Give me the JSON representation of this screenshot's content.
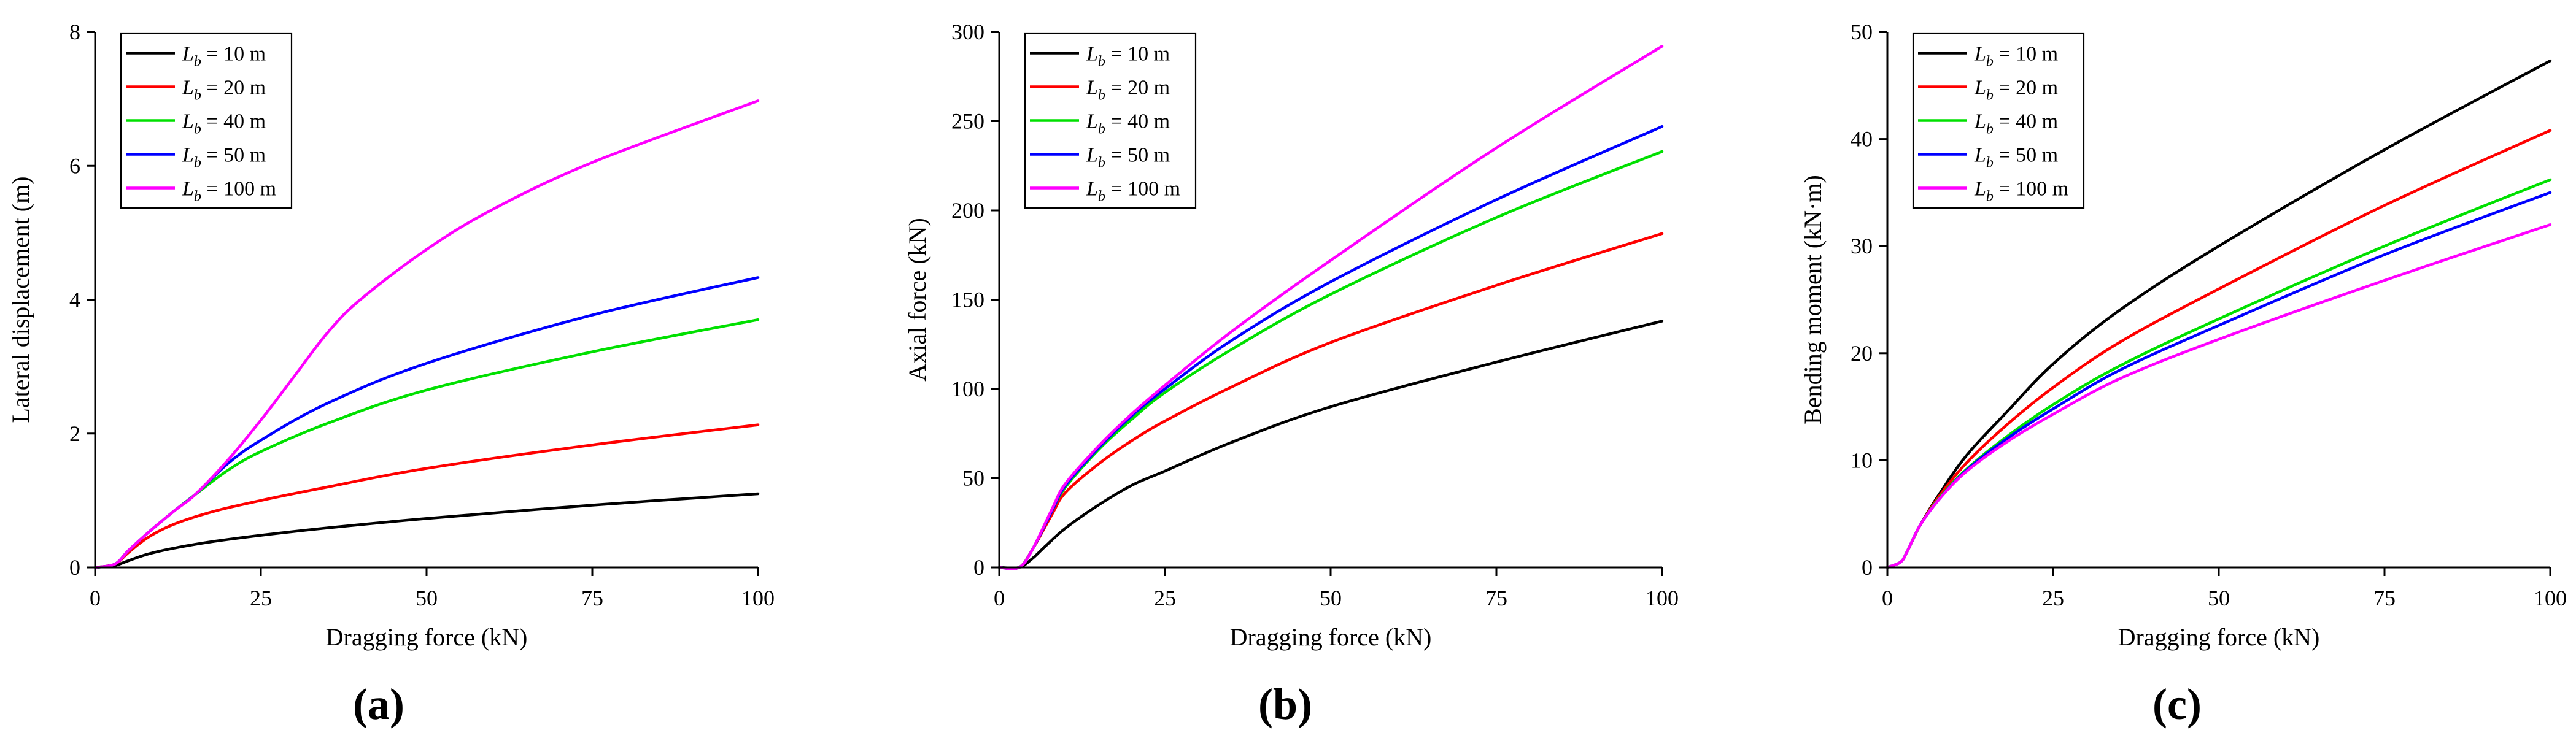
{
  "figure": {
    "panel_labels": [
      "(a)",
      "(b)",
      "(c)"
    ]
  },
  "legend_labels": [
    {
      "sym": "L",
      "sub": "b",
      "value": " = 10 m"
    },
    {
      "sym": "L",
      "sub": "b",
      "value": " = 20 m"
    },
    {
      "sym": "L",
      "sub": "b",
      "value": " = 40 m"
    },
    {
      "sym": "L",
      "sub": "b",
      "value": " = 50 m"
    },
    {
      "sym": "L",
      "sub": "b",
      "value": " = 100 m"
    }
  ],
  "colors": {
    "Lb_10": "#000000",
    "Lb_20": "#ff0000",
    "Lb_40": "#00e000",
    "Lb_50": "#0000ff",
    "Lb_100": "#ff00ff"
  },
  "chart_data": [
    {
      "type": "line",
      "panel": "(a)",
      "xlabel": "Dragging force (kN)",
      "ylabel": "Lateral displacement (m)",
      "xlim": [
        0,
        100
      ],
      "ylim": [
        0,
        8
      ],
      "xticks": [
        0,
        25,
        50,
        75,
        100
      ],
      "yticks": [
        0,
        2,
        4,
        6,
        8
      ],
      "grid": false,
      "legend": "top-left",
      "series": [
        {
          "name": "Lb = 10 m",
          "color": "#000000",
          "x": [
            0,
            3,
            5,
            8,
            12,
            18,
            25,
            35,
            50,
            75,
            100
          ],
          "y": [
            0,
            0.03,
            0.1,
            0.2,
            0.29,
            0.39,
            0.48,
            0.59,
            0.73,
            0.93,
            1.1
          ]
        },
        {
          "name": "Lb = 20 m",
          "color": "#ff0000",
          "x": [
            0,
            3,
            5,
            8,
            12,
            18,
            25,
            35,
            50,
            75,
            100
          ],
          "y": [
            0,
            0.05,
            0.22,
            0.45,
            0.65,
            0.84,
            1.0,
            1.2,
            1.48,
            1.83,
            2.13
          ]
        },
        {
          "name": "Lb = 40 m",
          "color": "#00e000",
          "x": [
            0,
            3,
            5,
            8,
            12,
            15,
            20,
            25,
            35,
            50,
            75,
            100
          ],
          "y": [
            0,
            0.05,
            0.25,
            0.52,
            0.85,
            1.08,
            1.45,
            1.73,
            2.15,
            2.65,
            3.22,
            3.7
          ]
        },
        {
          "name": "Lb = 50 m",
          "color": "#0000ff",
          "x": [
            0,
            3,
            5,
            8,
            12,
            15,
            20,
            25,
            35,
            50,
            75,
            100
          ],
          "y": [
            0,
            0.05,
            0.25,
            0.52,
            0.85,
            1.08,
            1.55,
            1.9,
            2.45,
            3.05,
            3.77,
            4.33
          ]
        },
        {
          "name": "Lb = 100 m",
          "color": "#ff00ff",
          "x": [
            0,
            3,
            5,
            8,
            12,
            15,
            20,
            25,
            30,
            35,
            40,
            50,
            60,
            75,
            100
          ],
          "y": [
            0,
            0.05,
            0.25,
            0.52,
            0.85,
            1.08,
            1.6,
            2.2,
            2.85,
            3.5,
            4.0,
            4.75,
            5.35,
            6.05,
            6.97
          ]
        }
      ]
    },
    {
      "type": "line",
      "panel": "(b)",
      "xlabel": "Dragging force (kN)",
      "ylabel": "Axial force (kN)",
      "xlim": [
        0,
        100
      ],
      "ylim": [
        0,
        300
      ],
      "xticks": [
        0,
        25,
        50,
        75,
        100
      ],
      "yticks": [
        0,
        50,
        100,
        150,
        200,
        250,
        300
      ],
      "grid": false,
      "legend": "top-left",
      "series": [
        {
          "name": "Lb = 10 m",
          "color": "#000000",
          "x": [
            0,
            3,
            5,
            7,
            10,
            15,
            20,
            25,
            35,
            50,
            75,
            100
          ],
          "y": [
            0,
            0,
            5,
            12,
            22,
            35,
            46,
            54,
            70,
            90,
            115,
            138
          ]
        },
        {
          "name": "Lb = 20 m",
          "color": "#ff0000",
          "x": [
            0,
            3,
            5,
            8,
            10,
            15,
            20,
            25,
            35,
            50,
            75,
            100
          ],
          "y": [
            0,
            0,
            10,
            30,
            42,
            58,
            71,
            82,
            101,
            126,
            158,
            187
          ]
        },
        {
          "name": "Lb = 40 m",
          "color": "#00e000",
          "x": [
            0,
            3,
            5,
            8,
            10,
            15,
            20,
            25,
            35,
            50,
            75,
            100
          ],
          "y": [
            0,
            0,
            10,
            32,
            45,
            66,
            83,
            98,
            122,
            153,
            196,
            233
          ]
        },
        {
          "name": "Lb = 50 m",
          "color": "#0000ff",
          "x": [
            0,
            3,
            5,
            8,
            10,
            15,
            20,
            25,
            35,
            50,
            75,
            100
          ],
          "y": [
            0,
            0,
            10,
            32,
            46,
            67,
            85,
            100,
            127,
            160,
            206,
            247
          ]
        },
        {
          "name": "Lb = 100 m",
          "color": "#ff00ff",
          "x": [
            0,
            3,
            5,
            8,
            10,
            15,
            20,
            25,
            35,
            50,
            75,
            100
          ],
          "y": [
            0,
            0,
            10,
            33,
            47,
            68,
            86,
            102,
            132,
            172,
            235,
            292
          ]
        }
      ]
    },
    {
      "type": "line",
      "panel": "(c)",
      "xlabel": "Dragging force (kN)",
      "ylabel": "Bending moment (kN·m)",
      "xlim": [
        0,
        100
      ],
      "ylim": [
        0,
        50
      ],
      "xticks": [
        0,
        25,
        50,
        75,
        100
      ],
      "yticks": [
        0,
        10,
        20,
        30,
        40,
        50
      ],
      "grid": false,
      "legend": "top-left",
      "series": [
        {
          "name": "Lb = 10 m",
          "color": "#000000",
          "x": [
            0,
            2,
            3,
            5,
            8,
            12,
            18,
            25,
            35,
            50,
            75,
            100
          ],
          "y": [
            0,
            0.5,
            1.5,
            4,
            7,
            10.5,
            14.5,
            19,
            24,
            30,
            39,
            47.3
          ]
        },
        {
          "name": "Lb = 20 m",
          "color": "#ff0000",
          "x": [
            0,
            2,
            3,
            5,
            8,
            12,
            18,
            25,
            35,
            50,
            75,
            100
          ],
          "y": [
            0,
            0.5,
            1.5,
            4,
            6.8,
            9.8,
            13.3,
            16.8,
            21,
            26,
            33.8,
            40.8
          ]
        },
        {
          "name": "Lb = 40 m",
          "color": "#00e000",
          "x": [
            0,
            2,
            3,
            5,
            8,
            12,
            18,
            25,
            35,
            50,
            75,
            100
          ],
          "y": [
            0,
            0.5,
            1.5,
            4,
            6.6,
            9.2,
            12.2,
            15.2,
            18.8,
            23.2,
            30,
            36.2
          ]
        },
        {
          "name": "Lb = 50 m",
          "color": "#0000ff",
          "x": [
            0,
            2,
            3,
            5,
            8,
            12,
            18,
            25,
            35,
            50,
            75,
            100
          ],
          "y": [
            0,
            0.5,
            1.5,
            4,
            6.5,
            9.1,
            12,
            14.8,
            18.4,
            22.6,
            29.2,
            35
          ]
        },
        {
          "name": "Lb = 100 m",
          "color": "#ff00ff",
          "x": [
            0,
            2,
            3,
            5,
            8,
            12,
            18,
            25,
            35,
            50,
            75,
            100
          ],
          "y": [
            0,
            0.5,
            1.5,
            4,
            6.5,
            9,
            11.7,
            14.3,
            17.6,
            21.3,
            26.8,
            32
          ]
        }
      ]
    }
  ]
}
